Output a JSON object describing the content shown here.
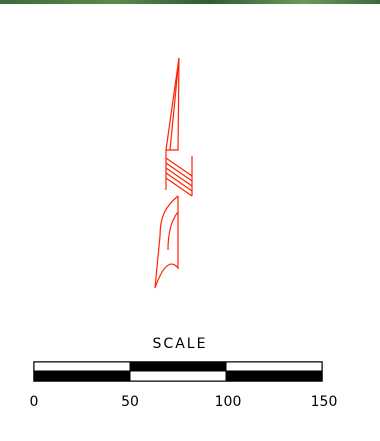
{
  "scale": {
    "title": "SCALE",
    "ticks": [
      "0",
      "50",
      "100",
      "150"
    ]
  },
  "colors": {
    "north_arrow": "#ff2200",
    "scale_bar": "#000000",
    "top_strip": "#3f6a3a"
  },
  "icons": {
    "north_arrow": "north-arrow-icon"
  }
}
